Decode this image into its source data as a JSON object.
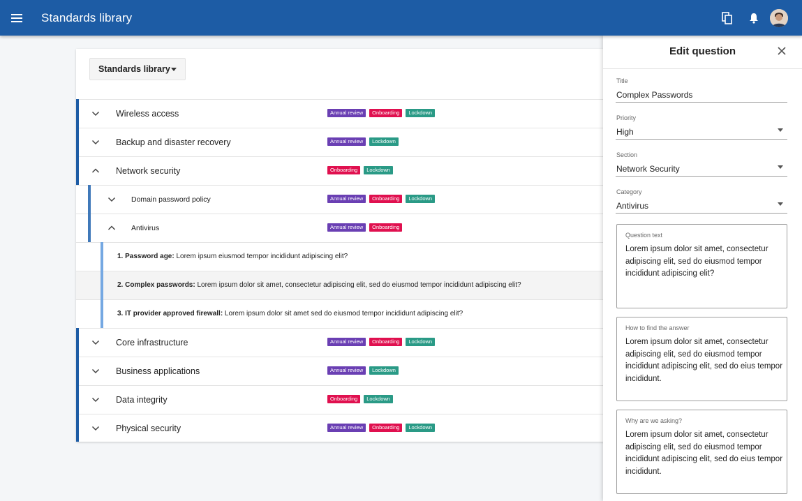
{
  "app": {
    "title": "Standards library"
  },
  "library_select": {
    "value": "Standards library"
  },
  "colors": {
    "appbar": "#1d5ca5",
    "annual_review": "#6a3fb3",
    "onboarding": "#e0104f",
    "lockdown": "#2a9a86"
  },
  "tag_labels": {
    "annual": "Annual review",
    "onboarding": "Onboarding",
    "lockdown": "Lockdown"
  },
  "sections": [
    {
      "label": "Wireless access",
      "expanded": false
    },
    {
      "label": "Backup and disaster recovery",
      "expanded": false
    },
    {
      "label": "Network security",
      "expanded": true
    },
    {
      "label": "Domain password policy",
      "expanded": false
    },
    {
      "label": "Antivirus",
      "expanded": true
    },
    {
      "label": "Core infrastructure",
      "expanded": false
    },
    {
      "label": "Business applications",
      "expanded": false
    },
    {
      "label": "Data integrity",
      "expanded": false
    },
    {
      "label": "Physical security",
      "expanded": false
    }
  ],
  "questions": [
    {
      "title": "1. Password age:",
      "text": " Lorem ipsum eiusmod tempor incididunt  adipiscing elit?"
    },
    {
      "title": "2. Complex passwords:",
      "text": " Lorem ipsum dolor sit amet, consectetur adipiscing elit, sed do eiusmod tempor incididunt  adipiscing elit?"
    },
    {
      "title": "3. IT provider approved firewall:",
      "text": " Lorem ipsum dolor sit amet sed do eiusmod tempor incididunt  adipiscing elit?"
    }
  ],
  "panel": {
    "title": "Edit question",
    "title_field": {
      "label": "Title",
      "value": "Complex Passwords"
    },
    "priority": {
      "label": "Priority",
      "value": "High"
    },
    "section": {
      "label": "Section",
      "value": "Network Security"
    },
    "category": {
      "label": "Category",
      "value": "Antivirus"
    },
    "question_text": {
      "label": "Question text",
      "value": "Lorem ipsum dolor sit amet, consectetur adipiscing elit, sed do eiusmod tempor incididunt  adipiscing elit?"
    },
    "how_to_find": {
      "label": "How to find the answer",
      "value": "Lorem ipsum dolor sit amet, consectetur adipiscing elit, sed do eiusmod tempor incididunt  adipiscing elit, sed do eius tempor incididunt."
    },
    "why_asking": {
      "label": "Why are we asking?",
      "value": "Lorem ipsum dolor sit amet, consectetur adipiscing elit, sed do eiusmod tempor incididunt  adipiscing elit, sed do eius tempor incididunt."
    }
  }
}
